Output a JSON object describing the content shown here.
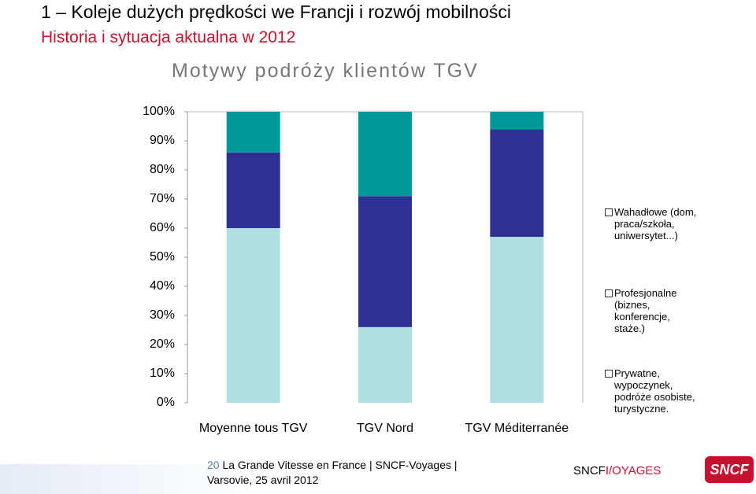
{
  "header": {
    "title": "1 – Koleje dużych prędkości we Francji i rozwój mobilności",
    "subtitle": "Historia i sytuacja aktualna w  2012"
  },
  "chart_data": {
    "type": "stacked-bar",
    "title": "Motywy podróży klientów TGV",
    "categories": [
      "Moyenne tous TGV",
      "TGV Nord",
      "TGV Méditerranée"
    ],
    "series": [
      {
        "name": "Prywatne, wypoczynek, podróże osobiste, turystyczne.",
        "color": "#aee0e2",
        "values": [
          60,
          26,
          57
        ]
      },
      {
        "name": "Profesjonalne (biznes, konferencje, staże.)",
        "color": "#2e3192",
        "values": [
          26,
          45,
          37
        ]
      },
      {
        "name": "Wahadłowe (dom, praca/szkoła, uniwersytet...)",
        "color": "#009999",
        "values": [
          14,
          29,
          6
        ]
      }
    ],
    "ylim": [
      0,
      100
    ],
    "yticks": [
      {
        "value": 0,
        "label": "0%"
      },
      {
        "value": 10,
        "label": "10%"
      },
      {
        "value": 20,
        "label": "20%"
      },
      {
        "value": 30,
        "label": "30%"
      },
      {
        "value": 40,
        "label": "40%"
      },
      {
        "value": 50,
        "label": "50%"
      },
      {
        "value": 60,
        "label": "60%"
      },
      {
        "value": 70,
        "label": "70%"
      },
      {
        "value": 80,
        "label": "80%"
      },
      {
        "value": 90,
        "label": "90%"
      },
      {
        "value": 100,
        "label": "100%"
      }
    ],
    "grid": false
  },
  "footer": {
    "page": "20",
    "text": "La Grande Vitesse en France | SNCF-Voyages | Varsovie, 25 avril 2012",
    "brand": "SNCF",
    "brand_suffix": "I/OYAGES",
    "logo": "SNCF"
  }
}
